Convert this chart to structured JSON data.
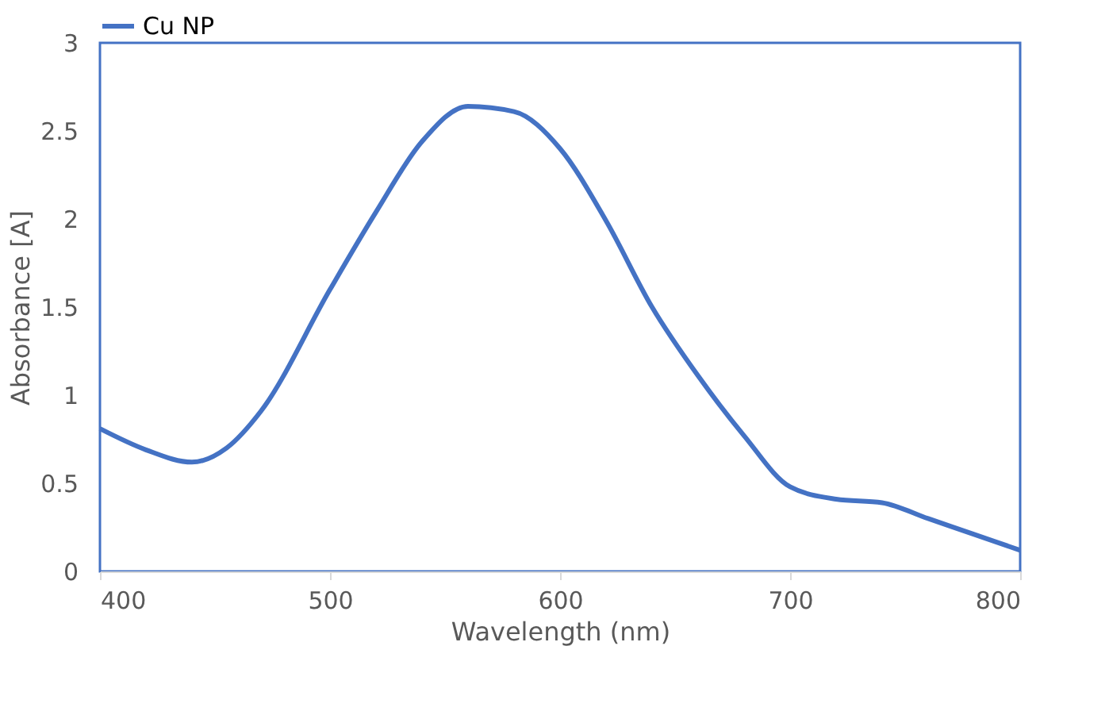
{
  "chart_data": {
    "type": "line",
    "xlabel": "Wavelength (nm)",
    "ylabel": "Absorbance [A]",
    "x": [
      400,
      420,
      440,
      455,
      470,
      500,
      520,
      540,
      560,
      580,
      600,
      620,
      640,
      660,
      680,
      700,
      720,
      740,
      760,
      780,
      800
    ],
    "series": [
      {
        "name": "Cu NP",
        "color": "#4472c4",
        "values": [
          0.81,
          0.69,
          0.62,
          0.7,
          0.91,
          1.6,
          2.04,
          2.44,
          2.64,
          2.61,
          2.4,
          1.99,
          1.5,
          1.11,
          0.77,
          0.48,
          0.41,
          0.39,
          0.3,
          0.21,
          0.12
        ]
      }
    ],
    "xlim": [
      400,
      800
    ],
    "xticks": [
      400,
      500,
      600,
      700,
      800
    ],
    "ylim": [
      0,
      3
    ],
    "yticks": [
      0,
      0.5,
      1,
      1.5,
      2,
      2.5,
      3
    ],
    "grid": false,
    "legend": "top",
    "marker": "none",
    "line_style": "solid"
  }
}
